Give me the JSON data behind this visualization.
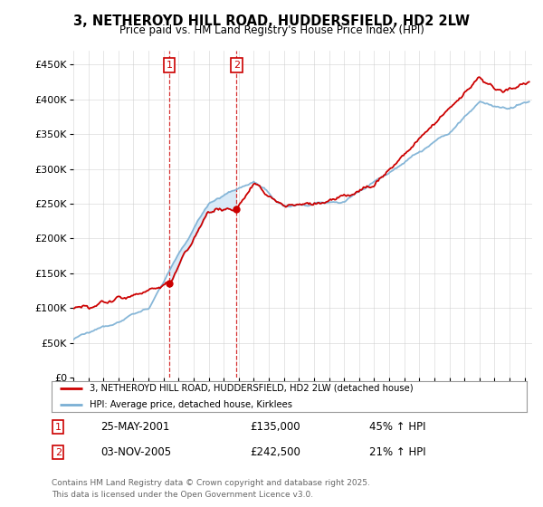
{
  "title": "3, NETHEROYD HILL ROAD, HUDDERSFIELD, HD2 2LW",
  "subtitle": "Price paid vs. HM Land Registry's House Price Index (HPI)",
  "legend_line1": "3, NETHEROYD HILL ROAD, HUDDERSFIELD, HD2 2LW (detached house)",
  "legend_line2": "HPI: Average price, detached house, Kirklees",
  "transaction1_date": "25-MAY-2001",
  "transaction1_price": "£135,000",
  "transaction1_hpi": "45% ↑ HPI",
  "transaction2_date": "03-NOV-2005",
  "transaction2_price": "£242,500",
  "transaction2_hpi": "21% ↑ HPI",
  "footer": "Contains HM Land Registry data © Crown copyright and database right 2025.\nThis data is licensed under the Open Government Licence v3.0.",
  "red_color": "#cc0000",
  "blue_color": "#7aafd4",
  "fill_color": "#d6e8f7",
  "marker1_date": 2001.38,
  "marker1_value": 135000,
  "marker2_date": 2005.84,
  "marker2_value": 242500,
  "ylim_max": 470000,
  "ylim_min": 0,
  "xlim_min": 1995.0,
  "xlim_max": 2025.5,
  "background_color": "#ffffff",
  "grid_color": "#cccccc"
}
